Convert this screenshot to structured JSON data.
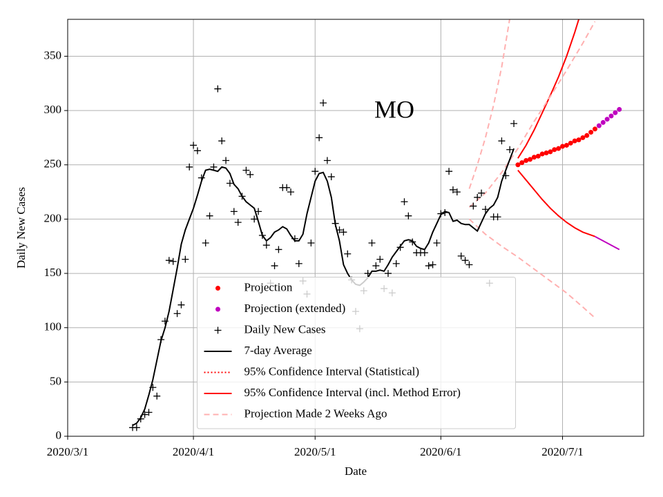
{
  "chart_data": {
    "type": "line",
    "annotation": "MO",
    "xlabel": "Date",
    "ylabel": "Daily New Cases",
    "xlim": [
      "2020-03-01",
      "2020-07-21"
    ],
    "xticks": [
      {
        "value": "2020-03-01",
        "label": "2020/3/1"
      },
      {
        "value": "2020-04-01",
        "label": "2020/4/1"
      },
      {
        "value": "2020-05-01",
        "label": "2020/5/1"
      },
      {
        "value": "2020-06-01",
        "label": "2020/6/1"
      },
      {
        "value": "2020-07-01",
        "label": "2020/7/1"
      }
    ],
    "ylim": [
      0,
      384
    ],
    "yticks": [
      0,
      50,
      100,
      150,
      200,
      250,
      300,
      350
    ],
    "grid": true,
    "legend": "lower center",
    "series": [
      {
        "name": "Projection",
        "color": "#ff0000",
        "style": "dots",
        "x": [
          "2020-06-20",
          "2020-06-21",
          "2020-06-22",
          "2020-06-23",
          "2020-06-24",
          "2020-06-25",
          "2020-06-26",
          "2020-06-27",
          "2020-06-28",
          "2020-06-29",
          "2020-06-30",
          "2020-07-01",
          "2020-07-02",
          "2020-07-03",
          "2020-07-04",
          "2020-07-05",
          "2020-07-06",
          "2020-07-07",
          "2020-07-08",
          "2020-07-09"
        ],
        "values": [
          250,
          252,
          254,
          255,
          257,
          258,
          260,
          261,
          262,
          264,
          265,
          267,
          268,
          270,
          272,
          273,
          275,
          277,
          280,
          283
        ]
      },
      {
        "name": "Projection (extended)",
        "color": "#bf00bf",
        "style": "dots",
        "x": [
          "2020-07-10",
          "2020-07-11",
          "2020-07-12",
          "2020-07-13",
          "2020-07-14",
          "2020-07-15"
        ],
        "values": [
          286,
          289,
          292,
          295,
          298,
          301
        ]
      },
      {
        "name": "Daily New Cases",
        "color": "#000000",
        "style": "plus",
        "x": [
          "2020-03-17",
          "2020-03-18",
          "2020-03-19",
          "2020-03-20",
          "2020-03-21",
          "2020-03-22",
          "2020-03-23",
          "2020-03-24",
          "2020-03-25",
          "2020-03-26",
          "2020-03-27",
          "2020-03-28",
          "2020-03-29",
          "2020-03-30",
          "2020-03-31",
          "2020-04-01",
          "2020-04-02",
          "2020-04-03",
          "2020-04-04",
          "2020-04-05",
          "2020-04-06",
          "2020-04-07",
          "2020-04-08",
          "2020-04-09",
          "2020-04-10",
          "2020-04-11",
          "2020-04-12",
          "2020-04-13",
          "2020-04-14",
          "2020-04-15",
          "2020-04-16",
          "2020-04-17",
          "2020-04-18",
          "2020-04-19",
          "2020-04-20",
          "2020-04-21",
          "2020-04-22",
          "2020-04-23",
          "2020-04-24",
          "2020-04-25",
          "2020-04-26",
          "2020-04-27",
          "2020-04-28",
          "2020-04-29",
          "2020-04-30",
          "2020-05-01",
          "2020-05-02",
          "2020-05-03",
          "2020-05-04",
          "2020-05-05",
          "2020-05-06",
          "2020-05-07",
          "2020-05-08",
          "2020-05-09",
          "2020-05-10",
          "2020-05-11",
          "2020-05-12",
          "2020-05-13",
          "2020-05-14",
          "2020-05-15",
          "2020-05-16",
          "2020-05-17",
          "2020-05-18",
          "2020-05-19",
          "2020-05-20",
          "2020-05-21",
          "2020-05-22",
          "2020-05-23",
          "2020-05-24",
          "2020-05-25",
          "2020-05-26",
          "2020-05-27",
          "2020-05-28",
          "2020-05-29",
          "2020-05-30",
          "2020-05-31",
          "2020-06-01",
          "2020-06-02",
          "2020-06-03",
          "2020-06-04",
          "2020-06-05",
          "2020-06-06",
          "2020-06-07",
          "2020-06-08",
          "2020-06-09",
          "2020-06-10",
          "2020-06-11",
          "2020-06-12",
          "2020-06-13",
          "2020-06-14",
          "2020-06-15",
          "2020-06-16",
          "2020-06-17",
          "2020-06-18",
          "2020-06-19"
        ],
        "values": [
          8,
          8,
          16,
          20,
          22,
          45,
          37,
          89,
          106,
          162,
          161,
          113,
          121,
          163,
          248,
          268,
          263,
          238,
          178,
          203,
          248,
          320,
          272,
          254,
          233,
          207,
          197,
          221,
          245,
          241,
          200,
          207,
          185,
          176,
          141,
          157,
          172,
          229,
          229,
          225,
          182,
          159,
          143,
          131,
          178,
          244,
          275,
          307,
          254,
          239,
          196,
          190,
          188,
          168,
          144,
          115,
          99,
          134,
          150,
          178,
          157,
          163,
          136,
          150,
          132,
          159,
          174,
          216,
          203,
          179,
          169,
          169,
          169,
          157,
          158,
          178,
          205,
          206,
          244,
          227,
          225,
          166,
          162,
          158,
          212,
          220,
          224,
          209,
          141,
          202,
          202,
          272,
          240,
          264,
          288
        ]
      },
      {
        "name": "7-day Average",
        "color": "#000000",
        "style": "solid",
        "x": [
          "2020-03-17",
          "2020-03-18",
          "2020-03-19",
          "2020-03-20",
          "2020-03-21",
          "2020-03-22",
          "2020-03-23",
          "2020-03-24",
          "2020-03-25",
          "2020-03-26",
          "2020-03-27",
          "2020-03-28",
          "2020-03-29",
          "2020-03-30",
          "2020-03-31",
          "2020-04-01",
          "2020-04-02",
          "2020-04-03",
          "2020-04-04",
          "2020-04-05",
          "2020-04-06",
          "2020-04-07",
          "2020-04-08",
          "2020-04-09",
          "2020-04-10",
          "2020-04-11",
          "2020-04-12",
          "2020-04-13",
          "2020-04-14",
          "2020-04-15",
          "2020-04-16",
          "2020-04-17",
          "2020-04-18",
          "2020-04-19",
          "2020-04-20",
          "2020-04-21",
          "2020-04-22",
          "2020-04-23",
          "2020-04-24",
          "2020-04-25",
          "2020-04-26",
          "2020-04-27",
          "2020-04-28",
          "2020-04-29",
          "2020-04-30",
          "2020-05-01",
          "2020-05-02",
          "2020-05-03",
          "2020-05-04",
          "2020-05-05",
          "2020-05-06",
          "2020-05-07",
          "2020-05-08",
          "2020-05-09",
          "2020-05-10",
          "2020-05-11",
          "2020-05-12",
          "2020-05-13",
          "2020-05-14",
          "2020-05-15",
          "2020-05-16",
          "2020-05-17",
          "2020-05-18",
          "2020-05-19",
          "2020-05-20",
          "2020-05-21",
          "2020-05-22",
          "2020-05-23",
          "2020-05-24",
          "2020-05-25",
          "2020-05-26",
          "2020-05-27",
          "2020-05-28",
          "2020-05-29",
          "2020-05-30",
          "2020-05-31",
          "2020-06-01",
          "2020-06-02",
          "2020-06-03",
          "2020-06-04",
          "2020-06-05",
          "2020-06-06",
          "2020-06-07",
          "2020-06-08",
          "2020-06-09",
          "2020-06-10",
          "2020-06-11",
          "2020-06-12",
          "2020-06-13",
          "2020-06-14",
          "2020-06-15",
          "2020-06-16",
          "2020-06-17",
          "2020-06-18",
          "2020-06-19"
        ],
        "values": [
          10,
          12,
          17,
          25,
          38,
          52,
          70,
          88,
          100,
          115,
          135,
          155,
          177,
          190,
          200,
          210,
          222,
          235,
          245,
          246,
          245,
          244,
          248,
          247,
          242,
          232,
          228,
          221,
          216,
          213,
          210,
          198,
          185,
          180,
          183,
          188,
          190,
          193,
          191,
          185,
          180,
          180,
          186,
          205,
          220,
          235,
          242,
          243,
          235,
          220,
          195,
          180,
          158,
          150,
          144,
          140,
          139,
          142,
          146,
          152,
          152,
          153,
          152,
          158,
          165,
          170,
          175,
          180,
          181,
          180,
          175,
          173,
          172,
          178,
          188,
          196,
          204,
          207,
          206,
          198,
          199,
          196,
          195,
          195,
          192,
          189,
          197,
          205,
          210,
          213,
          220,
          235,
          245,
          255,
          265
        ]
      },
      {
        "name": "95% Confidence Interval (Statistical)",
        "color": "#ff0000",
        "style": "dotted",
        "lines": []
      },
      {
        "name": "95% Confidence Interval (incl. Method Error)",
        "color": "#ff0000",
        "style": "solid",
        "lines": [
          {
            "x": [
              "2020-06-20",
              "2020-06-22",
              "2020-06-24",
              "2020-06-26",
              "2020-06-28",
              "2020-06-30",
              "2020-07-02",
              "2020-07-04",
              "2020-07-06",
              "2020-07-08"
            ],
            "values": [
              256,
              268,
              282,
              298,
              314,
              331,
              350,
              372,
              396,
              422
            ]
          },
          {
            "x": [
              "2020-06-20",
              "2020-06-22",
              "2020-06-24",
              "2020-06-26",
              "2020-06-28",
              "2020-06-30",
              "2020-07-02",
              "2020-07-04",
              "2020-07-06",
              "2020-07-09"
            ],
            "values": [
              245,
              236,
              227,
              218,
              210,
              203,
              197,
              192,
              188,
              184
            ]
          },
          {
            "color": "#bf00bf",
            "x": [
              "2020-07-09",
              "2020-07-15"
            ],
            "values": [
              184,
              172
            ]
          }
        ]
      },
      {
        "name": "Projection Made 2 Weeks Ago",
        "color": "#ffb0b0",
        "style": "dashed",
        "lines": [
          {
            "x": [
              "2020-06-08",
              "2020-06-12",
              "2020-06-16",
              "2020-06-20",
              "2020-06-24",
              "2020-06-28",
              "2020-07-02",
              "2020-07-06",
              "2020-07-09"
            ],
            "values": [
              211,
              224,
              243,
              265,
              290,
              313,
              337,
              362,
              382
            ]
          },
          {
            "x": [
              "2020-06-08",
              "2020-06-10",
              "2020-06-12",
              "2020-06-14",
              "2020-06-16",
              "2020-06-18",
              "2020-06-19"
            ],
            "values": [
              228,
              250,
              275,
              305,
              340,
              385,
              400
            ]
          },
          {
            "x": [
              "2020-06-08",
              "2020-06-12",
              "2020-06-16",
              "2020-06-20",
              "2020-06-24",
              "2020-06-28",
              "2020-07-02",
              "2020-07-06",
              "2020-07-09"
            ],
            "values": [
              200,
              186,
              175,
              165,
              154,
              143,
              132,
              119,
              109
            ]
          }
        ]
      }
    ]
  }
}
